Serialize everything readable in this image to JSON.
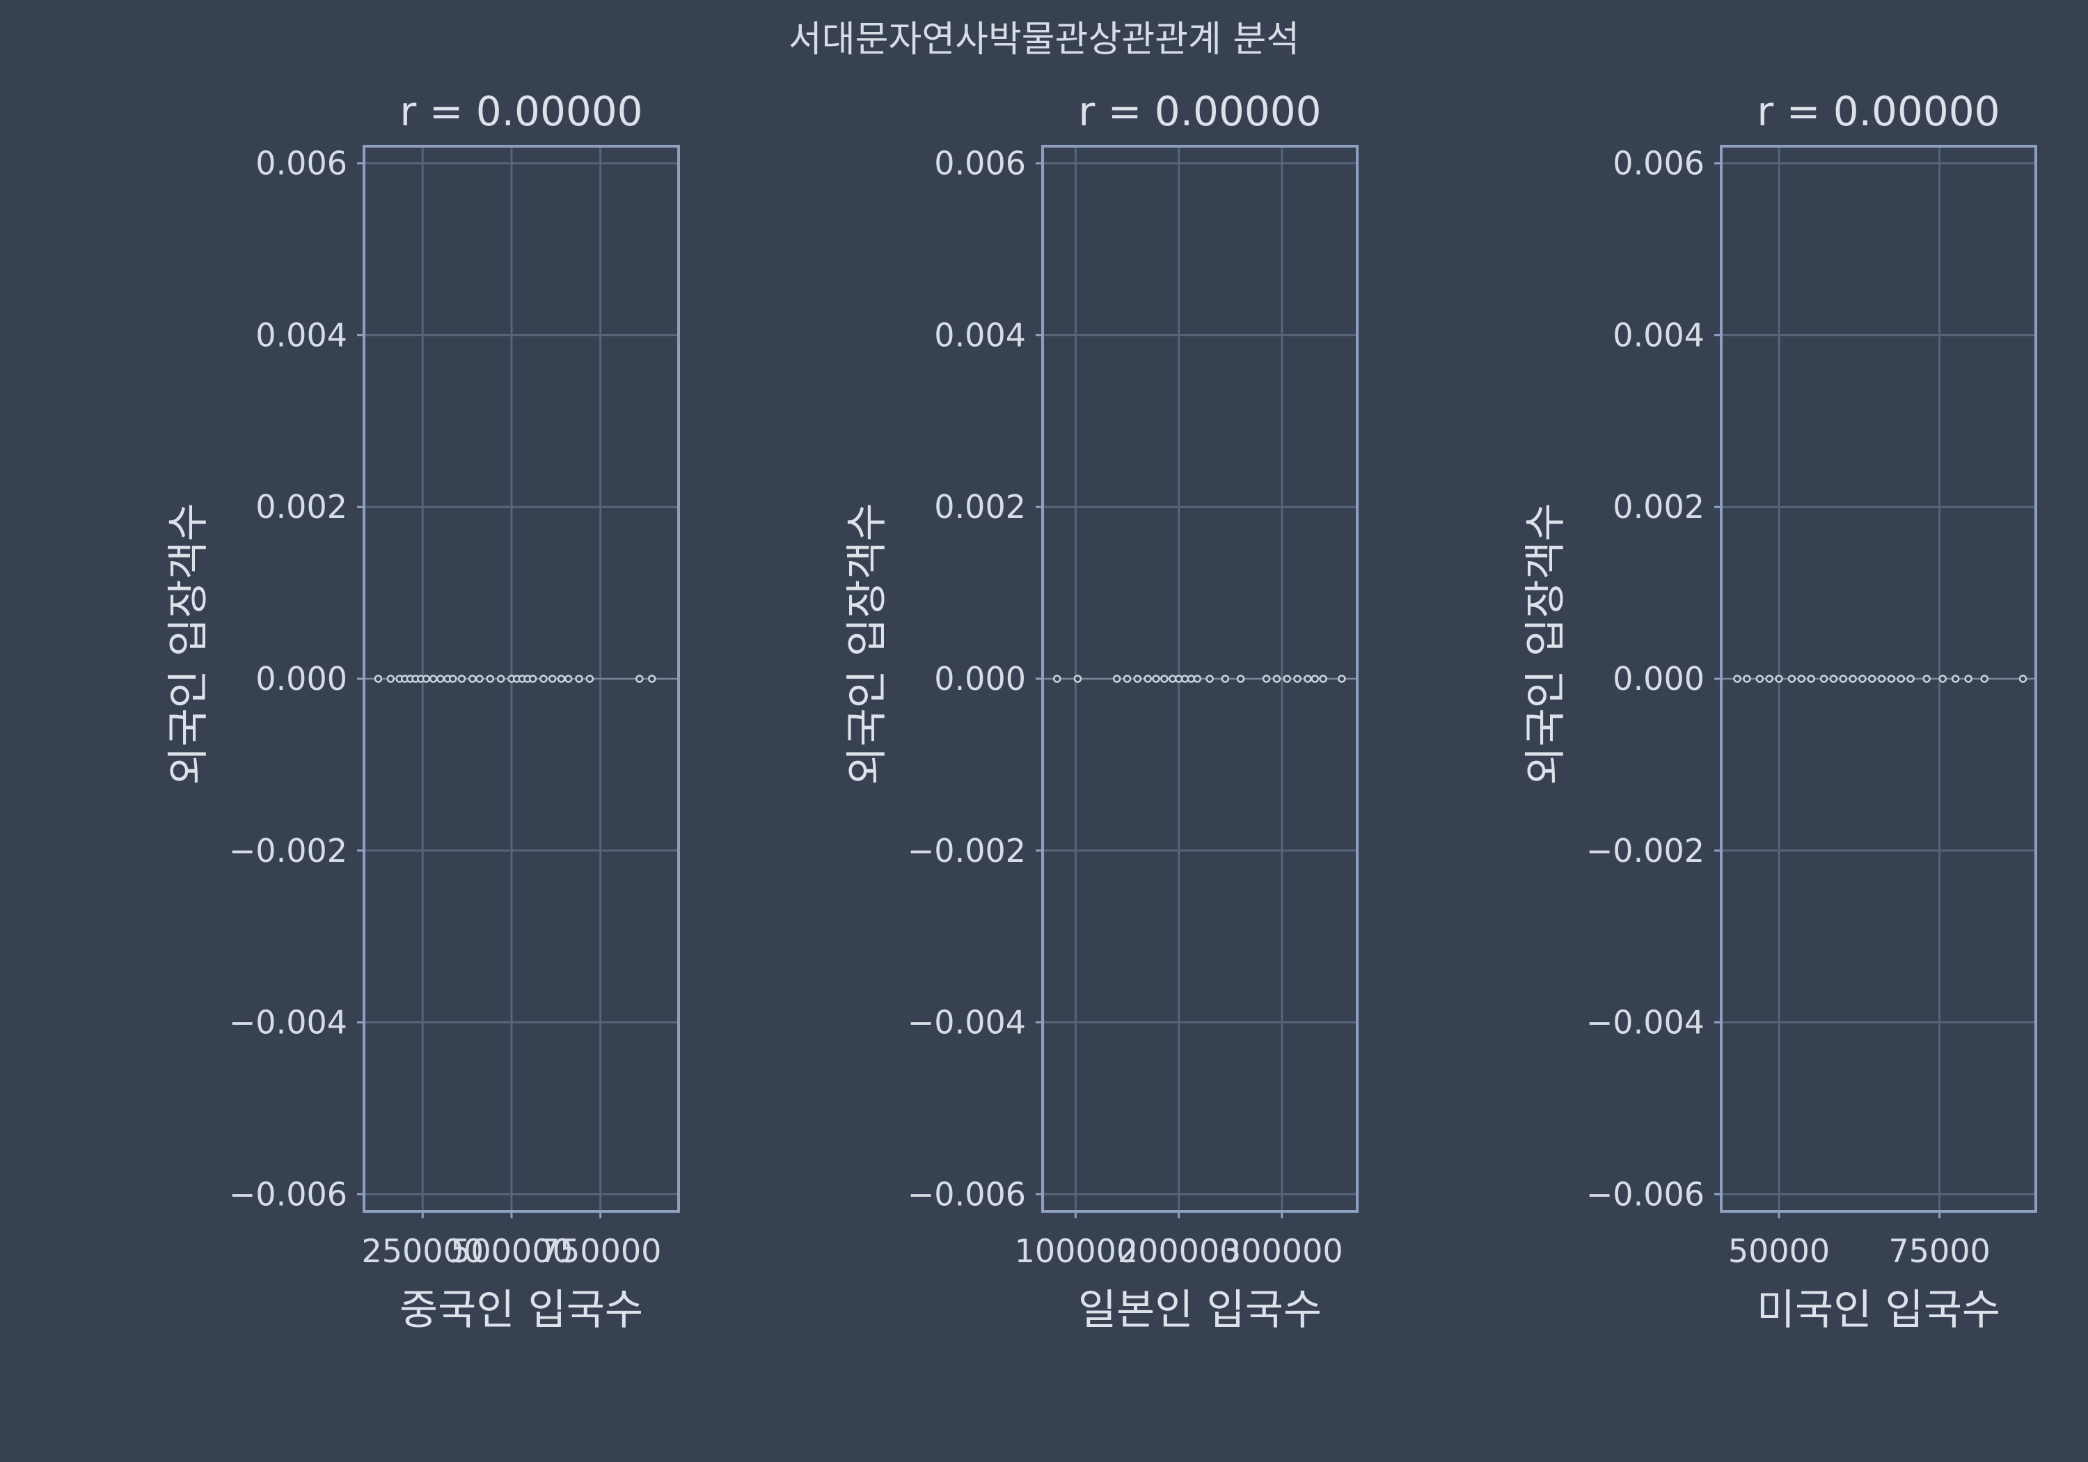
{
  "title": "서대문자연사박물관상관관계 분석",
  "colors": {
    "background": "#374151",
    "panel_border": "#8e9fbf",
    "grid": "#56657a",
    "text": "#d7dde6",
    "marker_edge": "#c8d0db",
    "zero_line": "#7c8899"
  },
  "chart_data": [
    {
      "type": "scatter",
      "title": "r = 0.00000",
      "xlabel": "중국인 입국수",
      "ylabel": "외국인 입장객수",
      "xlim": [
        85000,
        970000
      ],
      "ylim": [
        -0.0062,
        0.0062
      ],
      "xticks": [
        250000,
        500000,
        750000
      ],
      "xtick_labels": [
        "250000",
        "500000",
        "750000"
      ],
      "yticks": [
        0.006,
        0.004,
        0.002,
        0.0,
        -0.002,
        -0.004,
        -0.006
      ],
      "ytick_labels": [
        "0.006",
        "0.004",
        "0.002",
        "0.000",
        "−0.002",
        "−0.004",
        "−0.006"
      ],
      "grid": true,
      "series": [
        {
          "x": [
            125000,
            160000,
            185000,
            200000,
            215000,
            230000,
            245000,
            260000,
            280000,
            300000,
            320000,
            335000,
            360000,
            390000,
            410000,
            440000,
            470000,
            500000,
            515000,
            530000,
            545000,
            560000,
            590000,
            615000,
            640000,
            660000,
            690000,
            720000,
            860000,
            895000
          ],
          "y": [
            0,
            0,
            0,
            0,
            0,
            0,
            0,
            0,
            0,
            0,
            0,
            0,
            0,
            0,
            0,
            0,
            0,
            0,
            0,
            0,
            0,
            0,
            0,
            0,
            0,
            0,
            0,
            0,
            0,
            0
          ]
        }
      ]
    },
    {
      "type": "scatter",
      "title": "r = 0.00000",
      "xlabel": "일본인 입국수",
      "ylabel": "외국인 입장객수",
      "xlim": [
        68000,
        373000
      ],
      "ylim": [
        -0.0062,
        0.0062
      ],
      "xticks": [
        100000,
        200000,
        300000
      ],
      "xtick_labels": [
        "100000",
        "200000",
        "300000"
      ],
      "yticks": [
        0.006,
        0.004,
        0.002,
        0.0,
        -0.002,
        -0.004,
        -0.006
      ],
      "ytick_labels": [
        "0.006",
        "0.004",
        "0.002",
        "0.000",
        "−0.002",
        "−0.004",
        "−0.006"
      ],
      "grid": true,
      "series": [
        {
          "x": [
            82000,
            102000,
            140000,
            150000,
            160000,
            170000,
            178000,
            186000,
            194000,
            200000,
            206000,
            212000,
            218000,
            230000,
            245000,
            260000,
            285000,
            295000,
            305000,
            315000,
            325000,
            332000,
            340000,
            358000
          ],
          "y": [
            0,
            0,
            0,
            0,
            0,
            0,
            0,
            0,
            0,
            0,
            0,
            0,
            0,
            0,
            0,
            0,
            0,
            0,
            0,
            0,
            0,
            0,
            0,
            0
          ]
        }
      ]
    },
    {
      "type": "scatter",
      "title": "r = 0.00000",
      "xlabel": "미국인 입국수",
      "ylabel": "외국인 입장객수",
      "xlim": [
        41000,
        90000
      ],
      "ylim": [
        -0.0062,
        0.0062
      ],
      "xticks": [
        50000,
        75000
      ],
      "xtick_labels": [
        "50000",
        "75000"
      ],
      "yticks": [
        0.006,
        0.004,
        0.002,
        0.0,
        -0.002,
        -0.004,
        -0.006
      ],
      "ytick_labels": [
        "0.006",
        "0.004",
        "0.002",
        "0.000",
        "−0.002",
        "−0.004",
        "−0.006"
      ],
      "grid": true,
      "series": [
        {
          "x": [
            43500,
            45000,
            47000,
            48500,
            50000,
            52000,
            53500,
            55000,
            57000,
            58500,
            60000,
            61500,
            63000,
            64500,
            66000,
            67500,
            69000,
            70500,
            73000,
            75500,
            77500,
            79500,
            82000,
            88000
          ],
          "y": [
            0,
            0,
            0,
            0,
            0,
            0,
            0,
            0,
            0,
            0,
            0,
            0,
            0,
            0,
            0,
            0,
            0,
            0,
            0,
            0,
            0,
            0,
            0,
            0
          ]
        }
      ]
    }
  ]
}
